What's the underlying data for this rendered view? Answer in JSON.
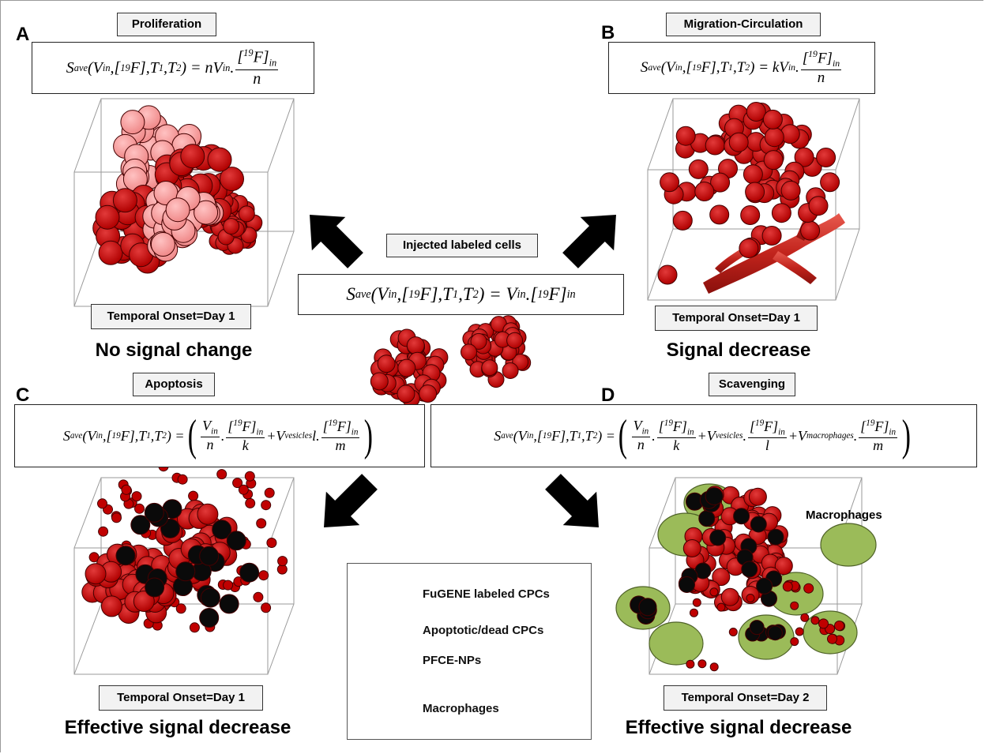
{
  "panels": {
    "A": {
      "letter": "A",
      "title": "Proliferation",
      "onset": "Temporal Onset=Day 1",
      "caption": "No signal change"
    },
    "B": {
      "letter": "B",
      "title": "Migration-Circulation",
      "onset": "Temporal Onset=Day 1",
      "caption": "Signal decrease"
    },
    "C": {
      "letter": "C",
      "title": "Apoptosis",
      "onset": "Temporal Onset=Day 1",
      "caption": "Effective signal decrease"
    },
    "D": {
      "letter": "D",
      "title": "Scavenging",
      "onset": "Temporal Onset=Day 2",
      "caption": "Effective signal decrease"
    }
  },
  "center": {
    "title": "Injected labeled cells"
  },
  "equations": {
    "lhs_S": "S",
    "lhs_sub": "ave",
    "lhs_args": "(V",
    "lhs_in": "in",
    "lhs_mid": ",[",
    "sup19": "19",
    "F": "F",
    "T1": "],T",
    "one": "1",
    "T2": ",T",
    "two": "2",
    "close": ") =",
    "A_factor": "nV",
    "B_factor": "kV",
    "n": "n",
    "k": "k",
    "l": "l",
    "m": "m",
    "vesicles": "vesicles",
    "macrophages": "macrophages",
    "center_rhs": "V"
  },
  "labels": {
    "macrophages": "Macrophages"
  },
  "legend": [
    {
      "label": "FuGENE labeled CPCs",
      "icon": "red-cell-icon"
    },
    {
      "label": "Apoptotic/dead CPCs",
      "icon": "black-cell-icon"
    },
    {
      "label": "PFCE-NPs",
      "icon": "small-red-dot-icon"
    },
    {
      "label": "Macrophages",
      "icon": "green-ellipse-icon"
    }
  ],
  "colors": {
    "cell_red": "#c00000",
    "cell_pink": "#f4a3a3",
    "dead": "#0a0a0a",
    "macrophage": "#9bbb59",
    "vessel": "#d2302b"
  }
}
